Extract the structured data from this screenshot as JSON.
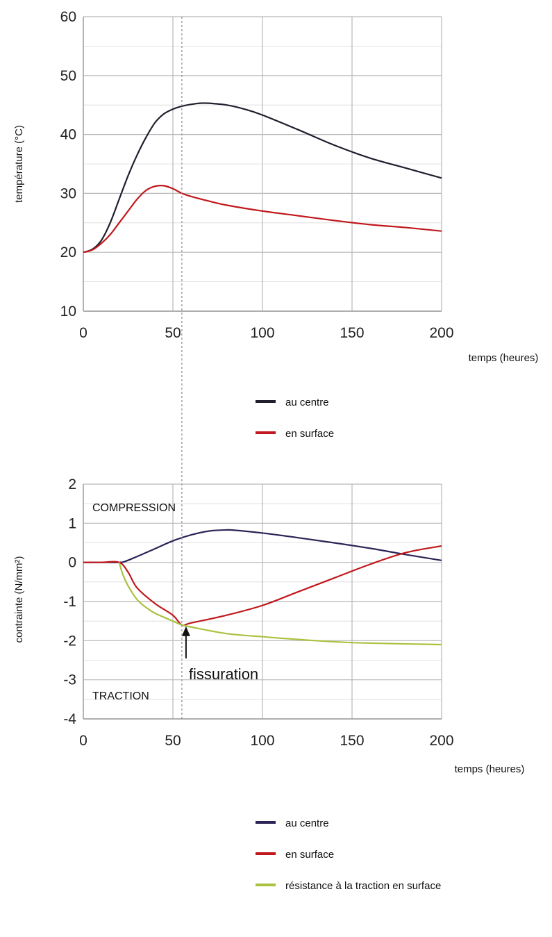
{
  "chart_data": [
    {
      "type": "line",
      "title": "",
      "xlabel": "temps (heures)",
      "ylabel": "température (°C)",
      "xlim": [
        0,
        200
      ],
      "ylim": [
        10,
        60
      ],
      "xticks": [
        "0",
        "50",
        "100",
        "150",
        "200"
      ],
      "yticks": [
        "10",
        "20",
        "30",
        "40",
        "50",
        "60"
      ],
      "grid": true,
      "legend_position": "below",
      "marker_line_x": 55,
      "series": [
        {
          "name": "au centre",
          "color": "#1f1f2e",
          "x": [
            0,
            5,
            10,
            15,
            20,
            25,
            30,
            35,
            40,
            45,
            50,
            55,
            60,
            65,
            70,
            80,
            90,
            100,
            120,
            140,
            160,
            180,
            200
          ],
          "y": [
            20,
            20.5,
            22,
            25,
            29,
            33,
            36.5,
            39.5,
            42,
            43.5,
            44.3,
            44.8,
            45.1,
            45.3,
            45.3,
            45,
            44.3,
            43.3,
            40.8,
            38.2,
            36,
            34.3,
            32.6
          ]
        },
        {
          "name": "en surface",
          "color": "#c0181c",
          "x": [
            0,
            5,
            10,
            15,
            20,
            25,
            30,
            35,
            40,
            45,
            50,
            55,
            60,
            70,
            80,
            100,
            120,
            140,
            160,
            180,
            200
          ],
          "y": [
            20,
            20.4,
            21.5,
            23,
            25,
            27,
            29,
            30.5,
            31.2,
            31.3,
            30.8,
            30,
            29.5,
            28.7,
            28,
            27,
            26.2,
            25.4,
            24.7,
            24.2,
            23.6
          ]
        }
      ]
    },
    {
      "type": "line",
      "title": "",
      "xlabel": "temps (heures)",
      "ylabel": "contrainte (N/mm²)",
      "xlim": [
        0,
        200
      ],
      "ylim": [
        -4,
        2
      ],
      "xticks": [
        "0",
        "50",
        "100",
        "150",
        "200"
      ],
      "yticks": [
        "-4",
        "-3",
        "-2",
        "-1",
        "0",
        "1",
        "2"
      ],
      "grid": true,
      "legend_position": "below",
      "marker_line_x": 55,
      "regions": {
        "top": "COMPRESSION",
        "bottom": "TRACTION"
      },
      "annotation": {
        "text": "fissuration",
        "x": 55,
        "y": -1.6
      },
      "series": [
        {
          "name": "au centre",
          "color": "#2d2456",
          "x": [
            0,
            10,
            20,
            23,
            30,
            40,
            50,
            60,
            70,
            80,
            85,
            100,
            120,
            140,
            160,
            180,
            200
          ],
          "y": [
            0,
            0,
            0,
            0.02,
            0.15,
            0.35,
            0.55,
            0.7,
            0.8,
            0.83,
            0.82,
            0.75,
            0.63,
            0.5,
            0.36,
            0.2,
            0.05
          ]
        },
        {
          "name": "en surface",
          "color": "#c0181c",
          "x": [
            0,
            10,
            20,
            25,
            30,
            40,
            50,
            55,
            60,
            80,
            100,
            120,
            140,
            160,
            180,
            200
          ],
          "y": [
            0,
            0,
            0,
            -0.25,
            -0.65,
            -1.05,
            -1.35,
            -1.6,
            -1.55,
            -1.35,
            -1.1,
            -0.75,
            -0.4,
            -0.05,
            0.25,
            0.42
          ]
        },
        {
          "name": "résistance à la traction en surface",
          "color": "#a9c23f",
          "x": [
            20,
            22,
            25,
            30,
            35,
            40,
            50,
            55,
            60,
            80,
            100,
            120,
            150,
            200
          ],
          "y": [
            0,
            -0.3,
            -0.6,
            -0.95,
            -1.15,
            -1.3,
            -1.5,
            -1.6,
            -1.65,
            -1.82,
            -1.9,
            -1.97,
            -2.05,
            -2.1
          ]
        }
      ]
    }
  ]
}
